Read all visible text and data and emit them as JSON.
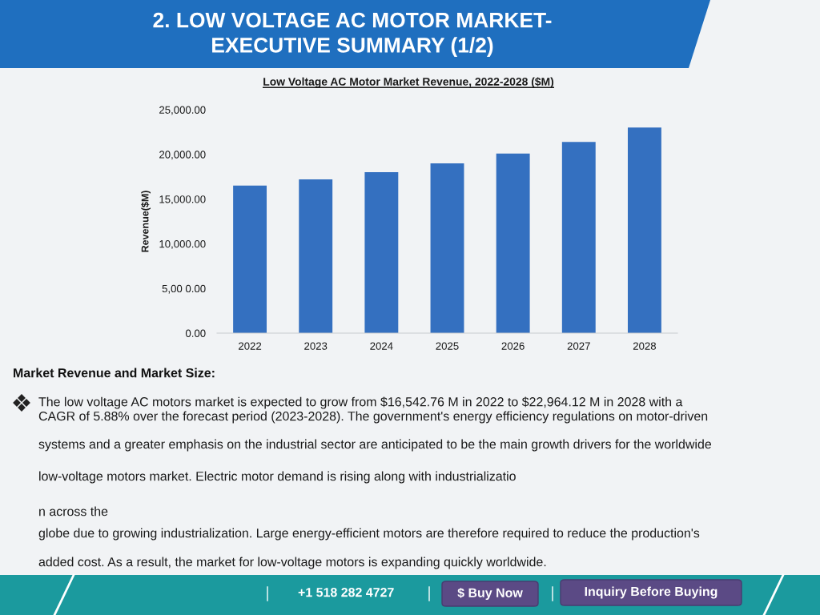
{
  "chart_data": {
    "type": "bar",
    "title": "2. LOW VOLTAGE AC MOTOR MARKET-\nEXECUTIVE SUMMARY (1/2)",
    "subtitle": "Low Voltage AC Motor Market Revenue, 2022-2028 ($M)",
    "ylabel": "Revenue($M)",
    "categories": [
      "2022",
      "2023",
      "2024",
      "2025",
      "2026",
      "2027",
      "2028"
    ],
    "values": [
      16500,
      17200,
      18000,
      19000,
      20100,
      21400,
      23000
    ],
    "color": "#3470c0",
    "ylim": [
      0,
      25000
    ],
    "yticks": [
      {
        "value": 0,
        "label": "0.00"
      },
      {
        "value": 5000,
        "label": "5,00 0.00"
      },
      {
        "value": 10000,
        "label": "10,000.00"
      },
      {
        "value": 15000,
        "label": "15,000.00"
      },
      {
        "value": 20000,
        "label": "20,000.00"
      },
      {
        "value": 25000,
        "label": "25,000.00"
      }
    ],
    "annotations": [
      "Market Revenue and Market Size:",
      "The low voltage AC motors market is expected to grow from $16,542.76 M in 2022 to $22,964.12 M in 2028 with a",
      "CAGR of 5.88% over the forecast period (2023-2028). The government's energy efficiency regulations on motor-driven",
      "systems and a greater emphasis on the industrial sector are anticipated to be the main growth drivers for the worldwide",
      "low-voltage motors market. Electric motor demand is rising along with industrializatio",
      "n across the",
      "globe due to growing industrialization. Large energy-efficient motors are therefore required to reduce the production's",
      "added cost. As a result, the market for low-voltage motors is expanding quickly worldwide.",
      "+1 518 282 4727",
      "$ Buy Now",
      "Inquiry Before Buying"
    ]
  }
}
